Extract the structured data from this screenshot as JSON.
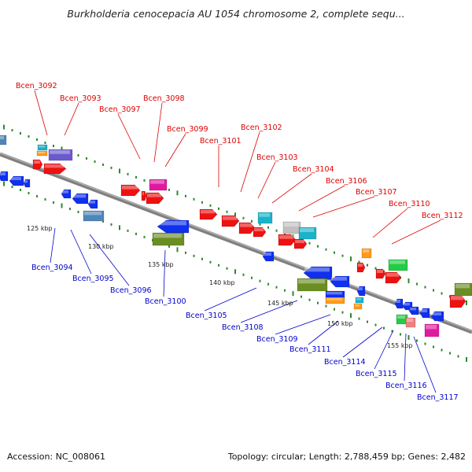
{
  "title": "Burkholderia cenocepacia AU 1054 chromosome 2, complete sequ...",
  "footer": {
    "accession": "Accession: NC_008061",
    "summary": "Topology: circular; Length: 2,788,459 bp; Genes: 2,482"
  },
  "colors": {
    "forward_label": "#dd0000",
    "reverse_label": "#0000cc",
    "backbone": "#808080",
    "tick_dots": "#2a8a2a"
  },
  "scale_labels": [
    "125 kbp",
    "130 kbp",
    "135 kbp",
    "140 kbp",
    "145 kbp",
    "150 kbp",
    "155 kbp"
  ],
  "forward_genes": [
    "Bcen_3092",
    "Bcen_3093",
    "Bcen_3097",
    "Bcen_3098",
    "Bcen_3099",
    "Bcen_3101",
    "Bcen_3102",
    "Bcen_3103",
    "Bcen_3104",
    "Bcen_3106",
    "Bcen_3107",
    "Bcen_3110",
    "Bcen_3112"
  ],
  "reverse_genes": [
    "Bcen_3094",
    "Bcen_3095",
    "Bcen_3096",
    "Bcen_3100",
    "Bcen_3105",
    "Bcen_3108",
    "Bcen_3109",
    "Bcen_3111",
    "Bcen_3114",
    "Bcen_3115",
    "Bcen_3116",
    "Bcen_3117"
  ]
}
